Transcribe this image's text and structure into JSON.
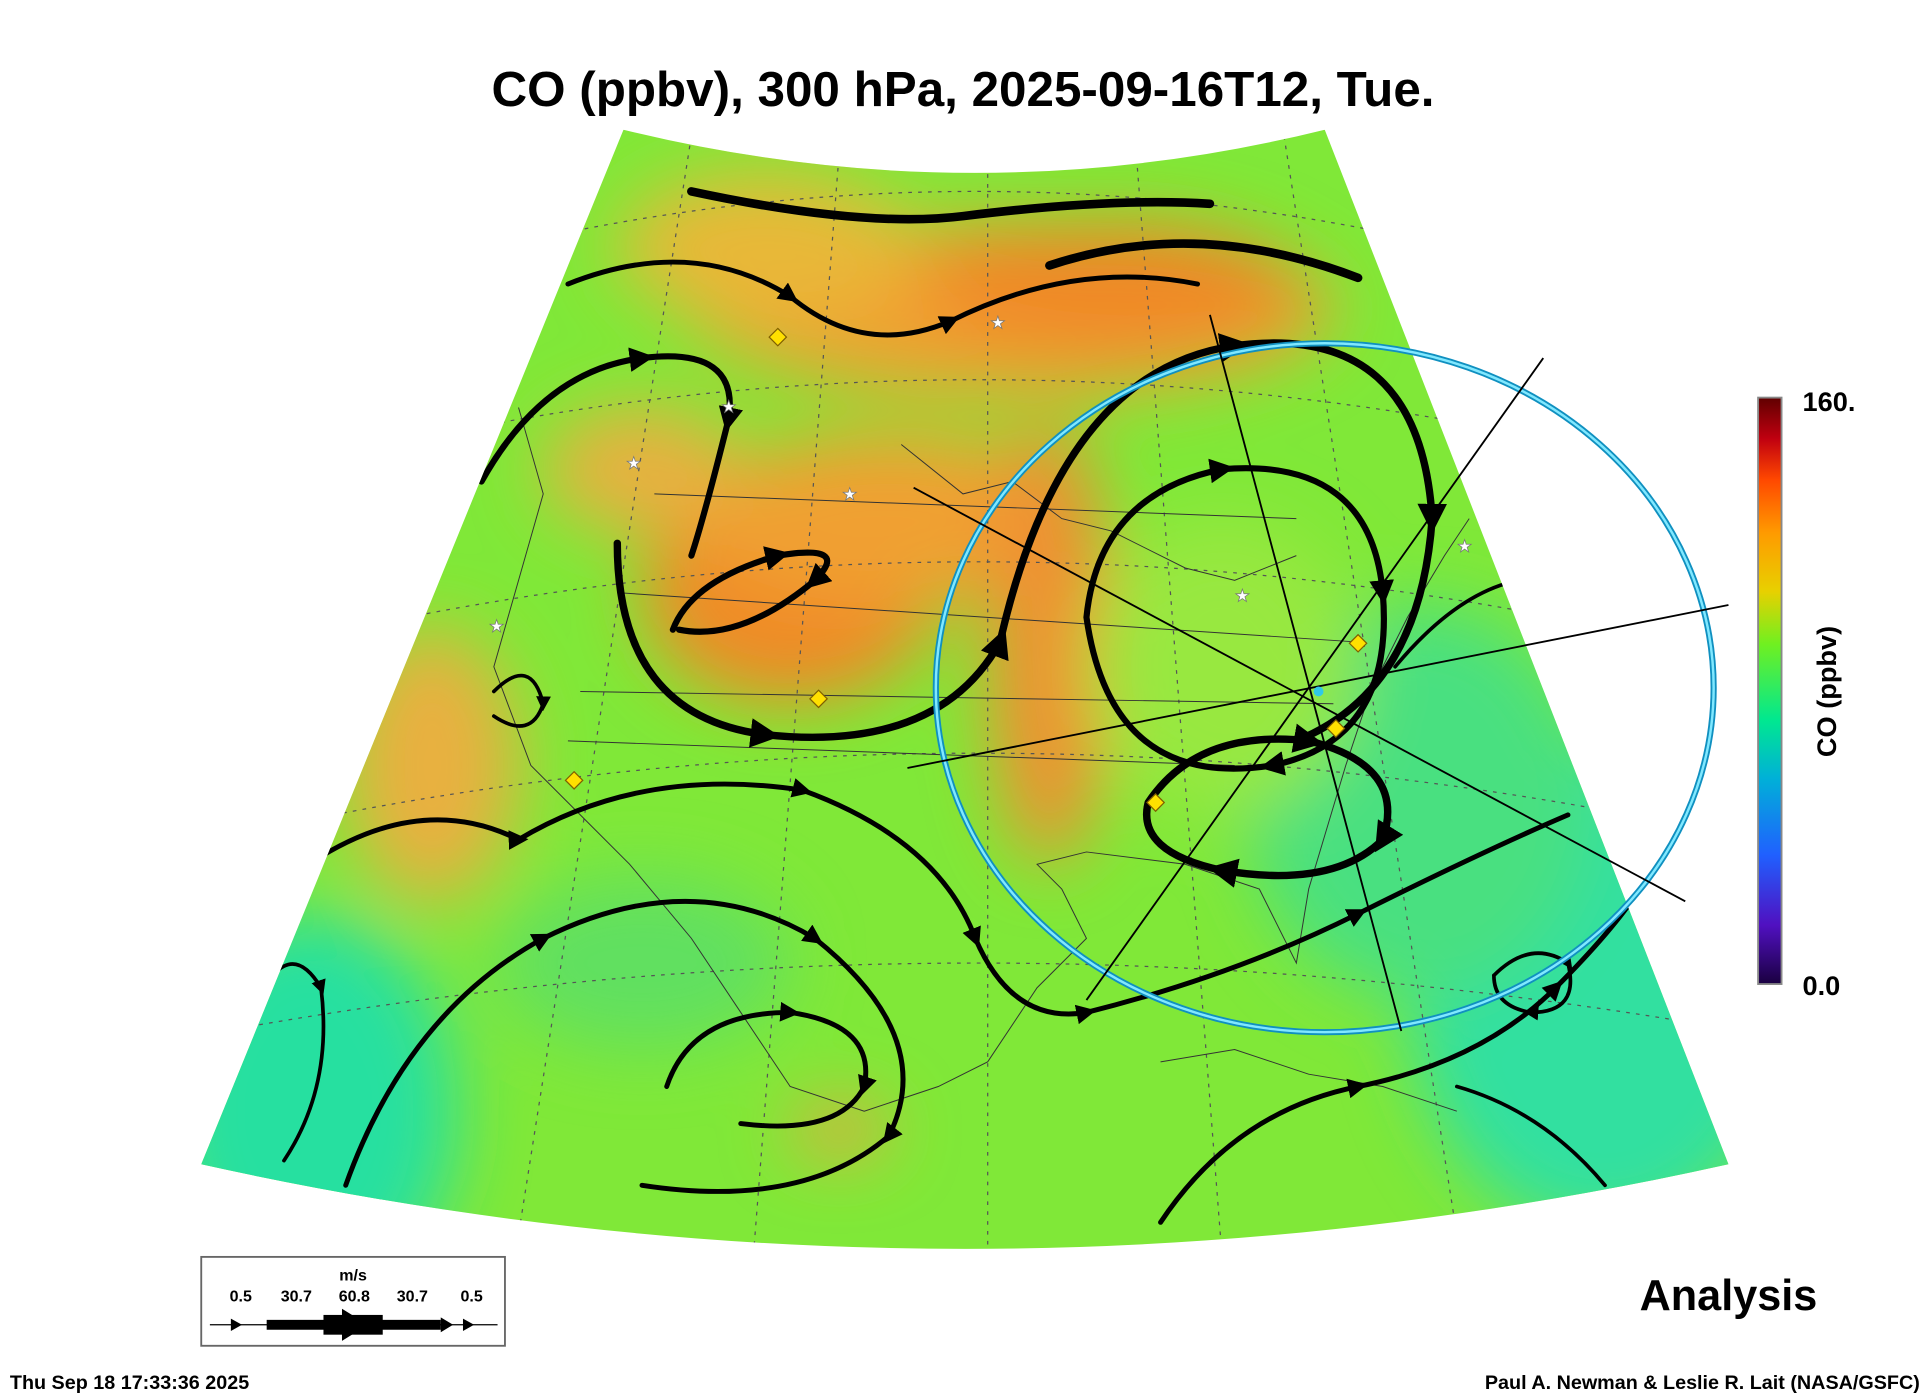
{
  "title": "CO (ppbv), 300 hPa, 2025-09-16T12, Tue.",
  "colorbar": {
    "label": "CO (ppbv)",
    "max_label": "160.",
    "min_label": "0.0",
    "range": [
      0,
      160
    ]
  },
  "wind_legend": {
    "unit": "m/s",
    "labels": [
      "0.5",
      "30.7",
      "60.8",
      "30.7",
      "0.5"
    ]
  },
  "product_label": "Analysis",
  "footer": {
    "timestamp": "Thu Sep 18 17:33:36 2025",
    "credit": "Paul A. Newman & Leslie R. Lait (NASA/GSFC)"
  },
  "colors": {
    "base_field": "#80e838",
    "high_co": "#f08a28",
    "low_co": "#28e0a0",
    "range_circle": "#30c8e8",
    "site_marker": "#ffe000"
  }
}
